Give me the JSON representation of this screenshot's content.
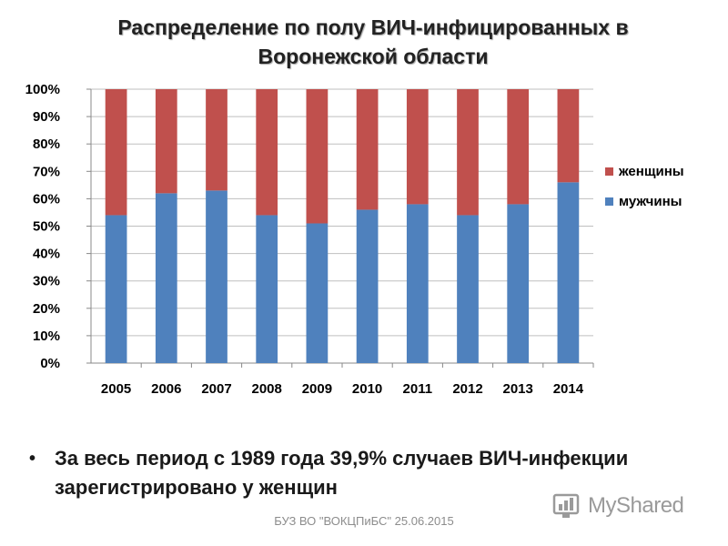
{
  "title_line1": "Распределение по полу ВИЧ-инфицированных в",
  "title_line2": "Воронежской области",
  "bullet": {
    "line1": "За весь период с 1989 года 39,9% случаев ВИЧ-инфекции",
    "line2": "зарегистрировано у женщин"
  },
  "footer": "БУЗ ВО \"ВОКЦПиБС\" 25.06.2015",
  "watermark": {
    "text": "MyShared",
    "icon": "myshared-logo-icon"
  },
  "colors": {
    "women": "#C0504D",
    "men": "#4F81BD",
    "grid": "#BFBFBF",
    "axis": "#888888"
  },
  "chart_data": {
    "type": "bar",
    "stacked": true,
    "percent": true,
    "categories": [
      "2005",
      "2006",
      "2007",
      "2008",
      "2009",
      "2010",
      "2011",
      "2012",
      "2013",
      "2014"
    ],
    "series": [
      {
        "name": "мужчины",
        "values": [
          54,
          62,
          63,
          54,
          51,
          56,
          58,
          54,
          58,
          66
        ]
      },
      {
        "name": "женщины",
        "values": [
          46,
          38,
          37,
          46,
          49,
          44,
          42,
          46,
          42,
          34
        ]
      }
    ],
    "legend_order": [
      "женщины",
      "мужчины"
    ],
    "legend_position": "right",
    "ylim": [
      0,
      100
    ],
    "yticks": [
      "0%",
      "10%",
      "20%",
      "30%",
      "40%",
      "50%",
      "60%",
      "70%",
      "80%",
      "90%",
      "100%"
    ],
    "grid": true
  }
}
